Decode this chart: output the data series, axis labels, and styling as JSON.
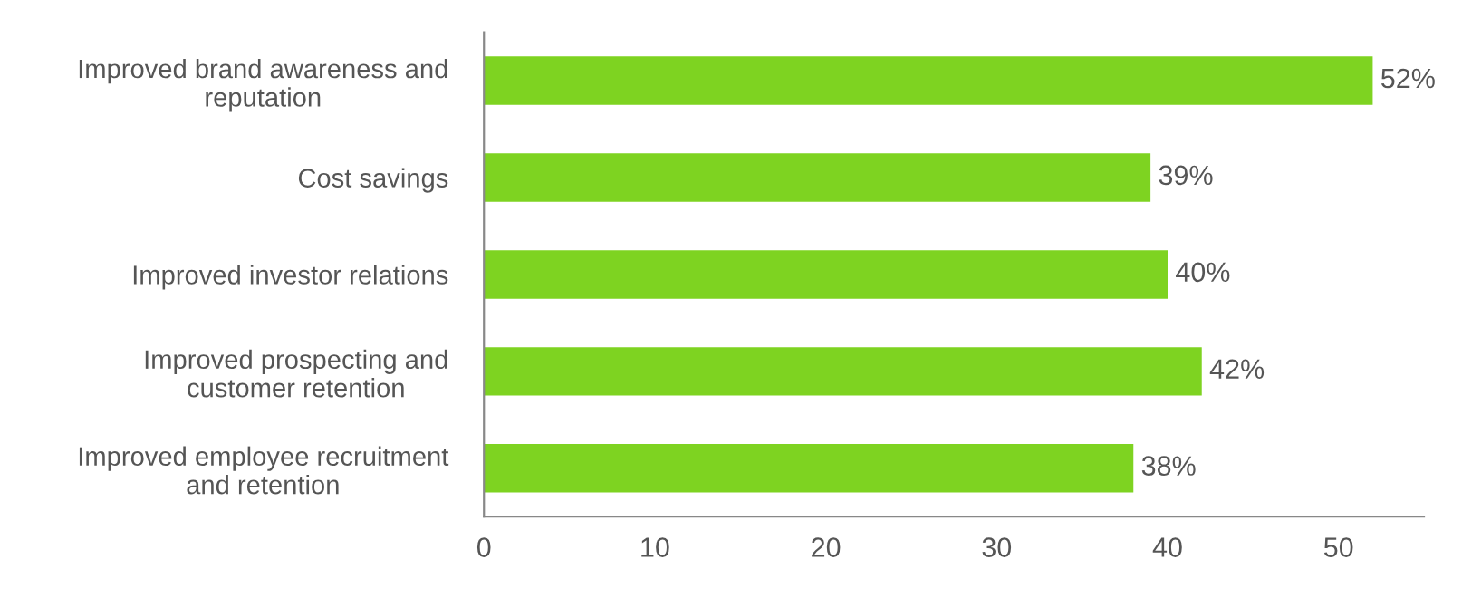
{
  "chart_data": {
    "type": "bar",
    "orientation": "horizontal",
    "categories": [
      "Improved brand awareness and\nreputation",
      "Cost savings",
      "Improved investor relations",
      "Improved prospecting and\ncustomer retention",
      "Improved employee recruitment\nand retention"
    ],
    "values": [
      52,
      39,
      40,
      42,
      38
    ],
    "value_labels": [
      "52%",
      "39%",
      "40%",
      "42%",
      "38%"
    ],
    "color": "#7ed321",
    "xlim": [
      0,
      55
    ],
    "xticks": [
      0,
      10,
      20,
      30,
      40,
      50
    ],
    "grid": false,
    "legend": false
  }
}
